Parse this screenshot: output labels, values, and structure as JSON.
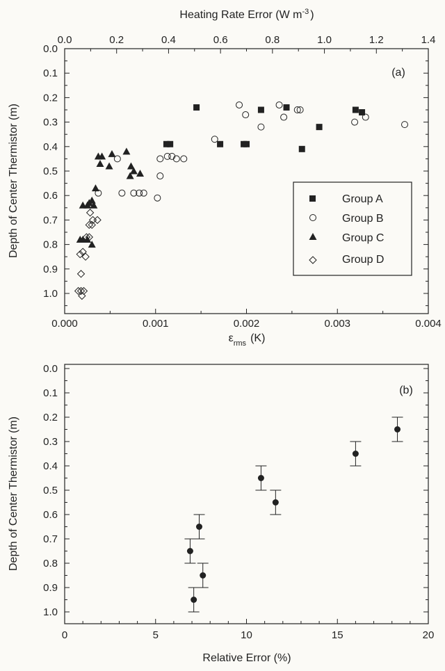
{
  "chart_data": [
    {
      "type": "scatter",
      "panel_label": "(a)",
      "xlabel": "ε",
      "xlabel_sub": "rms",
      "xlabel_unit": "(K)",
      "x2label": "Heating Rate Error (W m",
      "x2label_sup": "-3",
      "x2label_end": ")",
      "ylabel": "Depth of Center Thermistor (m)",
      "xlim": [
        0.0,
        0.004
      ],
      "x2lim": [
        0.0,
        1.4
      ],
      "ylim": [
        0.0,
        1.05
      ],
      "y_inverted": true,
      "xticks": [
        "0.000",
        "0.001",
        "0.002",
        "0.003",
        "0.004"
      ],
      "x2ticks": [
        "0.0",
        "0.2",
        "0.4",
        "0.6",
        "0.8",
        "1.0",
        "1.2",
        "1.4"
      ],
      "yticks": [
        "0.0",
        "0.1",
        "0.2",
        "0.3",
        "0.4",
        "0.5",
        "0.6",
        "0.7",
        "0.8",
        "0.9",
        "1.0"
      ],
      "legend_position": "bottom-right",
      "series": [
        {
          "name": "Group A",
          "marker": "filled-square",
          "points": [
            [
              0.00145,
              0.24
            ],
            [
              0.00112,
              0.39
            ],
            [
              0.00116,
              0.39
            ],
            [
              0.00171,
              0.39
            ],
            [
              0.00197,
              0.39
            ],
            [
              0.002,
              0.39
            ],
            [
              0.00216,
              0.25
            ],
            [
              0.00244,
              0.24
            ],
            [
              0.00261,
              0.41
            ],
            [
              0.0028,
              0.32
            ],
            [
              0.0032,
              0.25
            ],
            [
              0.00327,
              0.26
            ]
          ]
        },
        {
          "name": "Group B",
          "marker": "open-circle",
          "points": [
            [
              0.00192,
              0.23
            ],
            [
              0.00236,
              0.23
            ],
            [
              0.00199,
              0.27
            ],
            [
              0.00241,
              0.28
            ],
            [
              0.00256,
              0.25
            ],
            [
              0.00259,
              0.25
            ],
            [
              0.00216,
              0.32
            ],
            [
              0.00319,
              0.3
            ],
            [
              0.00331,
              0.28
            ],
            [
              0.00374,
              0.31
            ],
            [
              0.00165,
              0.37
            ],
            [
              0.00105,
              0.45
            ],
            [
              0.00113,
              0.44
            ],
            [
              0.00118,
              0.44
            ],
            [
              0.00123,
              0.45
            ],
            [
              0.00131,
              0.45
            ],
            [
              0.00105,
              0.52
            ],
            [
              0.00102,
              0.61
            ],
            [
              0.00063,
              0.59
            ],
            [
              0.00076,
              0.59
            ],
            [
              0.00082,
              0.59
            ],
            [
              0.00087,
              0.59
            ],
            [
              0.00058,
              0.45
            ],
            [
              0.00037,
              0.59
            ]
          ]
        },
        {
          "name": "Group C",
          "marker": "filled-triangle",
          "points": [
            [
              0.00037,
              0.44
            ],
            [
              0.00041,
              0.44
            ],
            [
              0.00052,
              0.43
            ],
            [
              0.00068,
              0.42
            ],
            [
              0.00039,
              0.47
            ],
            [
              0.00049,
              0.48
            ],
            [
              0.00073,
              0.48
            ],
            [
              0.00076,
              0.5
            ],
            [
              0.00083,
              0.51
            ],
            [
              0.00034,
              0.57
            ],
            [
              0.00072,
              0.52
            ],
            [
              0.0002,
              0.64
            ],
            [
              0.00025,
              0.64
            ],
            [
              0.00027,
              0.63
            ],
            [
              0.0003,
              0.62
            ],
            [
              0.00032,
              0.64
            ],
            [
              0.00017,
              0.78
            ],
            [
              0.0002,
              0.78
            ],
            [
              0.00025,
              0.78
            ],
            [
              0.0003,
              0.8
            ]
          ]
        },
        {
          "name": "Group D",
          "marker": "open-diamond",
          "points": [
            [
              0.00028,
              0.67
            ],
            [
              0.00031,
              0.7
            ],
            [
              0.00036,
              0.7
            ],
            [
              0.00027,
              0.72
            ],
            [
              0.0003,
              0.72
            ],
            [
              0.00024,
              0.77
            ],
            [
              0.00027,
              0.77
            ],
            [
              0.00017,
              0.84
            ],
            [
              0.0002,
              0.83
            ],
            [
              0.00023,
              0.85
            ],
            [
              0.00018,
              0.92
            ],
            [
              0.00015,
              0.99
            ],
            [
              0.00018,
              0.99
            ],
            [
              0.00021,
              0.99
            ],
            [
              0.00019,
              1.01
            ]
          ]
        }
      ]
    },
    {
      "type": "scatter",
      "panel_label": "(b)",
      "xlabel": "Relative Error (%)",
      "ylabel": "Depth of Center Thermistor (m)",
      "xlim": [
        0,
        20
      ],
      "ylim": [
        0.0,
        1.05
      ],
      "y_inverted": true,
      "xticks": [
        "0",
        "5",
        "10",
        "15",
        "20"
      ],
      "yticks": [
        "0.0",
        "0.1",
        "0.2",
        "0.3",
        "0.4",
        "0.5",
        "0.6",
        "0.7",
        "0.8",
        "0.9",
        "1.0"
      ],
      "error_bar_halfwidth": 0.05,
      "points": [
        [
          18.3,
          0.25
        ],
        [
          16.0,
          0.35
        ],
        [
          10.8,
          0.45
        ],
        [
          11.6,
          0.55
        ],
        [
          7.4,
          0.65
        ],
        [
          6.9,
          0.75
        ],
        [
          7.6,
          0.85
        ],
        [
          7.1,
          0.95
        ]
      ]
    }
  ]
}
